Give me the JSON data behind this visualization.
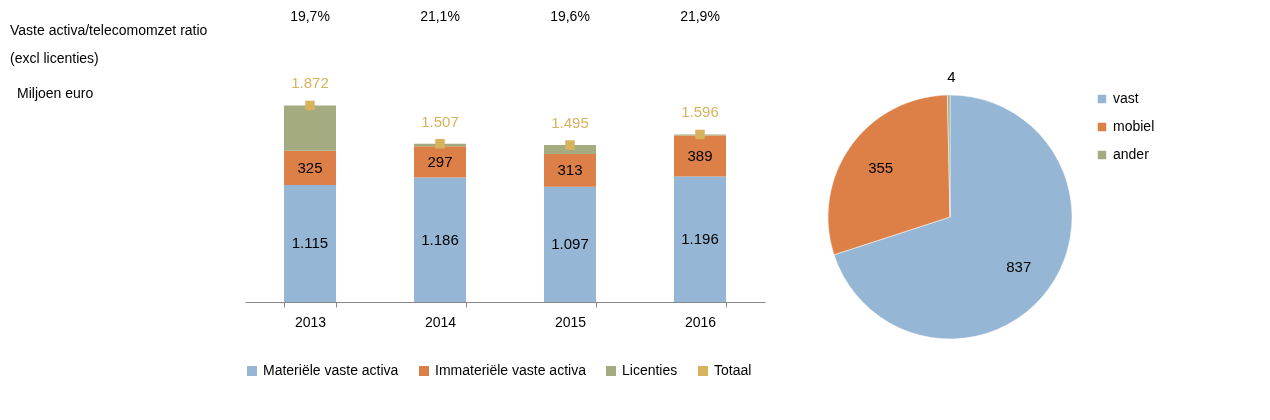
{
  "chart_data": [
    {
      "type": "bar",
      "stacked": true,
      "ylabel": "Miljoen euro",
      "categories": [
        "2013",
        "2014",
        "2015",
        "2016"
      ],
      "legend": "bottom",
      "grid": false,
      "series": [
        {
          "name": "Materiële vaste activa",
          "color": "#95b6d4",
          "values": [
            1115,
            1186,
            1097,
            1196
          ],
          "value_labels": [
            "1.115",
            "1.186",
            "1.097",
            "1.196"
          ]
        },
        {
          "name": "Immateriële vaste activa",
          "color": "#dd8047",
          "values": [
            325,
            297,
            313,
            389
          ],
          "value_labels": [
            "325",
            "297",
            "313",
            "389"
          ]
        },
        {
          "name": "Licenties",
          "color": "#a5ab81",
          "values": [
            432,
            24,
            85,
            11
          ]
        },
        {
          "name": "Totaal",
          "type": "scatter",
          "marker": "square",
          "color": "#d8b25c",
          "values": [
            1872,
            1507,
            1495,
            1596
          ],
          "value_labels": [
            "1.872",
            "1.507",
            "1.495",
            "1.596"
          ]
        }
      ],
      "annotations": [
        "Vaste activa/telecomomzet ratio\n(excl licenties)",
        "19,7%",
        "21,1%",
        "19,6%",
        "21,9%"
      ]
    },
    {
      "type": "pie",
      "categories": [
        "vast",
        "mobiel",
        "ander"
      ],
      "values": [
        837,
        355,
        4
      ],
      "colors": [
        "#95b6d4",
        "#dd8047",
        "#a5ab81"
      ],
      "data_labels": true,
      "legend": "right"
    }
  ]
}
